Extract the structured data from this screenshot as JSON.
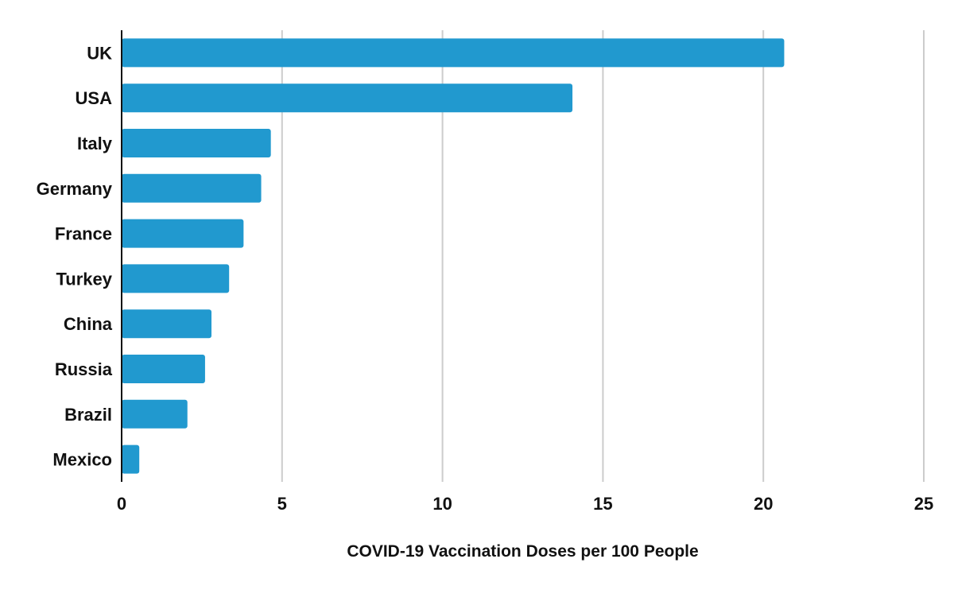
{
  "chart_data": {
    "type": "bar",
    "orientation": "horizontal",
    "categories": [
      "UK",
      "USA",
      "Italy",
      "Germany",
      "France",
      "Turkey",
      "China",
      "Russia",
      "Brazil",
      "Mexico"
    ],
    "values": [
      20.65,
      14.05,
      4.65,
      4.35,
      3.8,
      3.35,
      2.8,
      2.6,
      2.05,
      0.55
    ],
    "xlabel": "COVID-19 Vaccination Doses per 100 People",
    "ylabel": "",
    "xlim": [
      0,
      25
    ],
    "xticks": [
      0,
      5,
      10,
      15,
      20,
      25
    ],
    "grid": true,
    "legend": "none",
    "bar_color": "#2199cf",
    "grid_color": "#cccccc",
    "axis_color": "#111111"
  }
}
